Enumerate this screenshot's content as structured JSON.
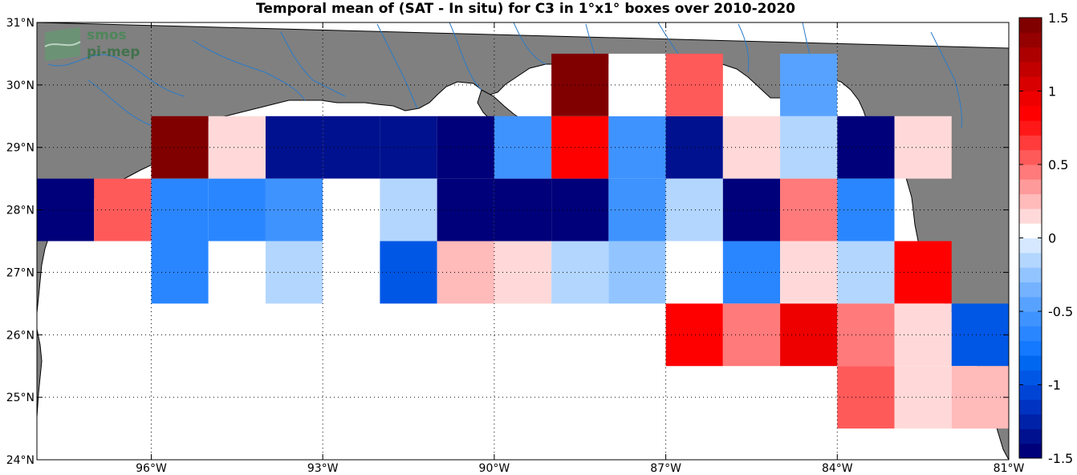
{
  "logo": {
    "line1": "smos",
    "line2": "pi-mep"
  },
  "chart_data": {
    "type": "heatmap",
    "title": "Temporal mean of (SAT - In situ) for C3 in 1°x1° boxes over 2010-2020",
    "xlim": [
      -98,
      -81
    ],
    "ylim": [
      24,
      31
    ],
    "x_ticks": [
      {
        "value": -96,
        "label": "96°W"
      },
      {
        "value": -93,
        "label": "93°W"
      },
      {
        "value": -90,
        "label": "90°W"
      },
      {
        "value": -87,
        "label": "87°W"
      },
      {
        "value": -84,
        "label": "84°W"
      },
      {
        "value": -81,
        "label": "81°W"
      }
    ],
    "y_ticks": [
      {
        "value": 24,
        "label": "24°N"
      },
      {
        "value": 25,
        "label": "25°N"
      },
      {
        "value": 26,
        "label": "26°N"
      },
      {
        "value": 27,
        "label": "27°N"
      },
      {
        "value": 28,
        "label": "28°N"
      },
      {
        "value": 29,
        "label": "29°N"
      },
      {
        "value": 30,
        "label": "30°N"
      },
      {
        "value": 31,
        "label": "31°N"
      }
    ],
    "grid": true,
    "colorbar": {
      "min": -1.5,
      "max": 1.5,
      "levels": 30,
      "ticks": [
        {
          "value": 1.5,
          "label": "1.5"
        },
        {
          "value": 1,
          "label": "1"
        },
        {
          "value": 0.5,
          "label": "0.5"
        },
        {
          "value": 0,
          "label": "0"
        },
        {
          "value": -0.5,
          "label": "-0.5"
        },
        {
          "value": -1,
          "label": "-1"
        },
        {
          "value": -1.5,
          "label": "-1.5"
        }
      ],
      "negative_colors": [
        "#00007a",
        "#00118f",
        "#0022a8",
        "#0033c1",
        "#0044d6",
        "#0057e6",
        "#0068f0",
        "#1479ff",
        "#2a86ff",
        "#3f93ff",
        "#58a2ff",
        "#74b2ff",
        "#92c4ff",
        "#b3d6ff",
        "#d6e8ff"
      ],
      "positive_colors": [
        "#ffffff",
        "#ffd9d9",
        "#ffbaba",
        "#ff9a9a",
        "#ff7a7a",
        "#ff5a5a",
        "#ff3b3b",
        "#ff1818",
        "#ff0000",
        "#ee0000",
        "#d80000",
        "#c20000",
        "#ac0000",
        "#950000",
        "#800000"
      ]
    },
    "cells": [
      {
        "lon": -97.5,
        "lat": 28,
        "value": -1.45
      },
      {
        "lon": -96.5,
        "lat": 28,
        "value": 0.5
      },
      {
        "lon": -95.5,
        "lat": 29,
        "value": 1.45
      },
      {
        "lon": -94.5,
        "lat": 29,
        "value": 0.15
      },
      {
        "lon": -93.5,
        "lat": 29,
        "value": -1.3
      },
      {
        "lon": -92.5,
        "lat": 29,
        "value": -1.3
      },
      {
        "lon": -91.5,
        "lat": 29,
        "value": -1.3
      },
      {
        "lon": -90.5,
        "lat": 29,
        "value": -1.45
      },
      {
        "lon": -89.5,
        "lat": 29,
        "value": -0.55
      },
      {
        "lon": -88.5,
        "lat": 29,
        "value": 0.8
      },
      {
        "lon": -87.5,
        "lat": 29,
        "value": -0.6
      },
      {
        "lon": -86.5,
        "lat": 29,
        "value": -1.3
      },
      {
        "lon": -85.5,
        "lat": 29,
        "value": 0.15
      },
      {
        "lon": -84.5,
        "lat": 29,
        "value": -0.1
      },
      {
        "lon": -83.5,
        "lat": 29,
        "value": -1.45
      },
      {
        "lon": -82.5,
        "lat": 29,
        "value": 0.15
      },
      {
        "lon": -88.5,
        "lat": 30,
        "value": 1.45
      },
      {
        "lon": -87.5,
        "lat": 30,
        "value": 0.0
      },
      {
        "lon": -86.5,
        "lat": 30,
        "value": 0.5
      },
      {
        "lon": -84.5,
        "lat": 30,
        "value": -0.5
      },
      {
        "lon": -95.5,
        "lat": 28,
        "value": -0.7
      },
      {
        "lon": -94.5,
        "lat": 28,
        "value": -0.7
      },
      {
        "lon": -93.5,
        "lat": 28,
        "value": -0.6
      },
      {
        "lon": -92.5,
        "lat": 28,
        "value": 0.0
      },
      {
        "lon": -91.5,
        "lat": 28,
        "value": -0.2
      },
      {
        "lon": -90.5,
        "lat": 28,
        "value": -1.45
      },
      {
        "lon": -89.5,
        "lat": 28,
        "value": -1.45
      },
      {
        "lon": -88.5,
        "lat": 28,
        "value": -1.45
      },
      {
        "lon": -87.5,
        "lat": 28,
        "value": -0.6
      },
      {
        "lon": -86.5,
        "lat": 28,
        "value": -0.1
      },
      {
        "lon": -85.5,
        "lat": 28,
        "value": -1.45
      },
      {
        "lon": -84.5,
        "lat": 28,
        "value": 0.4
      },
      {
        "lon": -83.5,
        "lat": 28,
        "value": -0.7
      },
      {
        "lon": -95.5,
        "lat": 27,
        "value": -0.7
      },
      {
        "lon": -94.5,
        "lat": 27,
        "value": 0.0
      },
      {
        "lon": -93.5,
        "lat": 27,
        "value": -0.1
      },
      {
        "lon": -92.5,
        "lat": 27,
        "value": 0.0
      },
      {
        "lon": -91.5,
        "lat": 27,
        "value": -0.9
      },
      {
        "lon": -90.5,
        "lat": 27,
        "value": 0.25
      },
      {
        "lon": -89.5,
        "lat": 27,
        "value": 0.15
      },
      {
        "lon": -88.5,
        "lat": 27,
        "value": -0.1
      },
      {
        "lon": -87.5,
        "lat": 27,
        "value": -0.25
      },
      {
        "lon": -86.5,
        "lat": 27,
        "value": 0.0
      },
      {
        "lon": -85.5,
        "lat": 27,
        "value": -0.7
      },
      {
        "lon": -84.5,
        "lat": 27,
        "value": 0.15
      },
      {
        "lon": -83.5,
        "lat": 27,
        "value": -0.2
      },
      {
        "lon": -82.5,
        "lat": 27,
        "value": 0.8
      },
      {
        "lon": -86.5,
        "lat": 26,
        "value": 0.85
      },
      {
        "lon": -85.5,
        "lat": 26,
        "value": 0.4
      },
      {
        "lon": -84.5,
        "lat": 26,
        "value": 0.95
      },
      {
        "lon": -83.5,
        "lat": 26,
        "value": 0.4
      },
      {
        "lon": -82.5,
        "lat": 26,
        "value": 0.15
      },
      {
        "lon": -81.5,
        "lat": 26,
        "value": -0.9
      },
      {
        "lon": -83.5,
        "lat": 25,
        "value": 0.5
      },
      {
        "lon": -82.5,
        "lat": 25,
        "value": 0.15
      },
      {
        "lon": -81.5,
        "lat": 25,
        "value": 0.2
      }
    ]
  },
  "colors": {
    "land": "#808080",
    "ocean": "#ffffff",
    "river": "#2b7bc8",
    "grid": "#000000"
  }
}
